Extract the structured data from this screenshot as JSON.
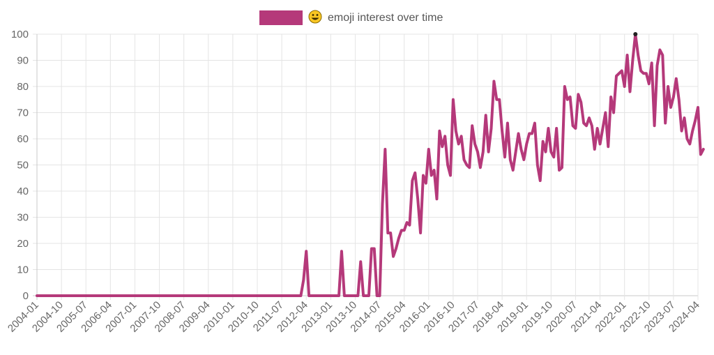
{
  "chart_data": {
    "type": "line",
    "legend": {
      "position": "top",
      "swatch_color": "#b5397a",
      "icon": "grinning-face-emoji",
      "emoji": "😀",
      "label": "emoji interest over time"
    },
    "colors": {
      "line": "#b5397a",
      "grid": "#e4e4e4",
      "text": "#666666"
    },
    "grid": true,
    "ylim": [
      0,
      100
    ],
    "yticks": [
      0,
      10,
      20,
      30,
      40,
      50,
      60,
      70,
      80,
      90,
      100
    ],
    "xlim": [
      "2004-01",
      "2024-04"
    ],
    "xticks": [
      "2004-01",
      "2004-10",
      "2005-07",
      "2006-04",
      "2007-01",
      "2007-10",
      "2008-07",
      "2009-04",
      "2010-01",
      "2010-10",
      "2011-07",
      "2012-04",
      "2013-01",
      "2013-10",
      "2014-07",
      "2015-04",
      "2016-01",
      "2016-10",
      "2017-07",
      "2018-04",
      "2019-01",
      "2019-10",
      "2020-07",
      "2021-04",
      "2022-01",
      "2022-10",
      "2023-07",
      "2024-04"
    ],
    "series": [
      {
        "name": "😀 emoji interest over time",
        "points": [
          [
            "2004-01",
            0
          ],
          [
            "2012-02",
            0
          ],
          [
            "2012-03",
            6
          ],
          [
            "2012-04",
            17
          ],
          [
            "2012-05",
            0
          ],
          [
            "2013-04",
            0
          ],
          [
            "2013-05",
            17
          ],
          [
            "2013-06",
            0
          ],
          [
            "2013-11",
            0
          ],
          [
            "2013-12",
            13
          ],
          [
            "2014-01",
            0
          ],
          [
            "2014-03",
            0
          ],
          [
            "2014-04",
            18
          ],
          [
            "2014-05",
            18
          ],
          [
            "2014-06",
            0
          ],
          [
            "2014-07",
            0
          ],
          [
            "2014-08",
            35
          ],
          [
            "2014-09",
            56
          ],
          [
            "2014-10",
            24
          ],
          [
            "2014-11",
            24
          ],
          [
            "2014-12",
            15
          ],
          [
            "2015-01",
            18
          ],
          [
            "2015-02",
            22
          ],
          [
            "2015-03",
            25
          ],
          [
            "2015-04",
            25
          ],
          [
            "2015-05",
            28
          ],
          [
            "2015-06",
            27
          ],
          [
            "2015-07",
            44
          ],
          [
            "2015-08",
            47
          ],
          [
            "2015-09",
            37
          ],
          [
            "2015-10",
            24
          ],
          [
            "2015-11",
            46
          ],
          [
            "2015-12",
            43
          ],
          [
            "2016-01",
            56
          ],
          [
            "2016-02",
            46
          ],
          [
            "2016-03",
            48
          ],
          [
            "2016-04",
            37
          ],
          [
            "2016-05",
            63
          ],
          [
            "2016-06",
            57
          ],
          [
            "2016-07",
            61
          ],
          [
            "2016-08",
            50
          ],
          [
            "2016-09",
            46
          ],
          [
            "2016-10",
            75
          ],
          [
            "2016-11",
            63
          ],
          [
            "2016-12",
            58
          ],
          [
            "2017-01",
            61
          ],
          [
            "2017-02",
            52
          ],
          [
            "2017-03",
            50
          ],
          [
            "2017-04",
            49
          ],
          [
            "2017-05",
            65
          ],
          [
            "2017-06",
            58
          ],
          [
            "2017-07",
            55
          ],
          [
            "2017-08",
            49
          ],
          [
            "2017-09",
            55
          ],
          [
            "2017-10",
            69
          ],
          [
            "2017-11",
            55
          ],
          [
            "2017-12",
            64
          ],
          [
            "2018-01",
            82
          ],
          [
            "2018-02",
            75
          ],
          [
            "2018-03",
            75
          ],
          [
            "2018-04",
            63
          ],
          [
            "2018-05",
            53
          ],
          [
            "2018-06",
            66
          ],
          [
            "2018-07",
            52
          ],
          [
            "2018-08",
            48
          ],
          [
            "2018-09",
            55
          ],
          [
            "2018-10",
            62
          ],
          [
            "2018-11",
            56
          ],
          [
            "2018-12",
            52
          ],
          [
            "2019-01",
            58
          ],
          [
            "2019-02",
            62
          ],
          [
            "2019-03",
            62
          ],
          [
            "2019-04",
            66
          ],
          [
            "2019-05",
            50
          ],
          [
            "2019-06",
            44
          ],
          [
            "2019-07",
            59
          ],
          [
            "2019-08",
            55
          ],
          [
            "2019-09",
            64
          ],
          [
            "2019-10",
            55
          ],
          [
            "2019-11",
            53
          ],
          [
            "2019-12",
            64
          ],
          [
            "2020-01",
            48
          ],
          [
            "2020-02",
            49
          ],
          [
            "2020-03",
            80
          ],
          [
            "2020-04",
            75
          ],
          [
            "2020-05",
            76
          ],
          [
            "2020-06",
            65
          ],
          [
            "2020-07",
            64
          ],
          [
            "2020-08",
            77
          ],
          [
            "2020-09",
            74
          ],
          [
            "2020-10",
            66
          ],
          [
            "2020-11",
            65
          ],
          [
            "2020-12",
            68
          ],
          [
            "2021-01",
            65
          ],
          [
            "2021-02",
            56
          ],
          [
            "2021-03",
            64
          ],
          [
            "2021-04",
            58
          ],
          [
            "2021-05",
            64
          ],
          [
            "2021-06",
            70
          ],
          [
            "2021-07",
            57
          ],
          [
            "2021-08",
            76
          ],
          [
            "2021-09",
            70
          ],
          [
            "2021-10",
            84
          ],
          [
            "2021-11",
            85
          ],
          [
            "2021-12",
            86
          ],
          [
            "2022-01",
            80
          ],
          [
            "2022-02",
            92
          ],
          [
            "2022-03",
            78
          ],
          [
            "2022-04",
            90
          ],
          [
            "2022-05",
            100
          ],
          [
            "2022-06",
            92
          ],
          [
            "2022-07",
            86
          ],
          [
            "2022-08",
            85
          ],
          [
            "2022-09",
            85
          ],
          [
            "2022-10",
            81
          ],
          [
            "2022-11",
            89
          ],
          [
            "2022-12",
            65
          ],
          [
            "2023-01",
            88
          ],
          [
            "2023-02",
            94
          ],
          [
            "2023-03",
            92
          ],
          [
            "2023-04",
            66
          ],
          [
            "2023-05",
            80
          ],
          [
            "2023-06",
            72
          ],
          [
            "2023-07",
            76
          ],
          [
            "2023-08",
            83
          ],
          [
            "2023-09",
            75
          ],
          [
            "2023-10",
            63
          ],
          [
            "2023-11",
            68
          ],
          [
            "2023-12",
            60
          ],
          [
            "2024-01",
            58
          ],
          [
            "2024-02",
            63
          ],
          [
            "2024-03",
            67
          ],
          [
            "2024-04",
            72
          ],
          [
            "2024-05",
            54
          ],
          [
            "2024-06",
            56
          ]
        ]
      }
    ]
  }
}
